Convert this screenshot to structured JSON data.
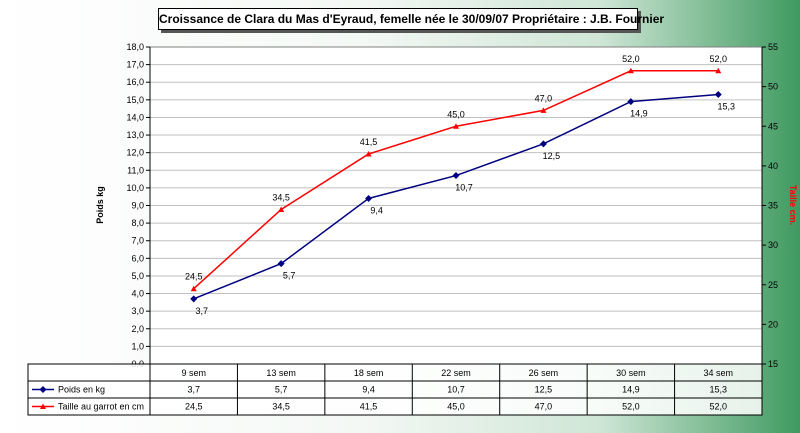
{
  "chart_data": {
    "type": "line",
    "title": "Croissance de Clara du Mas d'Eyraud, femelle née le 30/09/07  Propriétaire :  J.B. Fournier",
    "categories": [
      "9 sem",
      "13 sem",
      "18 sem",
      "22 sem",
      "26 sem",
      "30 sem",
      "34 sem"
    ],
    "y_left": {
      "label": "Poids kg",
      "ylim": [
        0,
        18
      ],
      "ticks": [
        "0,0",
        "1,0",
        "2,0",
        "3,0",
        "4,0",
        "5,0",
        "6,0",
        "7,0",
        "8,0",
        "9,0",
        "10,0",
        "11,0",
        "12,0",
        "13,0",
        "14,0",
        "15,0",
        "16,0",
        "17,0",
        "18,0"
      ]
    },
    "y_right": {
      "label": "Taille cm.",
      "ylim": [
        15,
        55
      ],
      "ticks": [
        "15",
        "20",
        "25",
        "30",
        "35",
        "40",
        "45",
        "50",
        "55"
      ]
    },
    "series": [
      {
        "name": "Poids en kg",
        "axis": "left",
        "color": "#000080",
        "marker": "diamond",
        "values": [
          3.7,
          5.7,
          9.4,
          10.7,
          12.5,
          14.9,
          15.3
        ],
        "labels": [
          "3,7",
          "5,7",
          "9,4",
          "10,7",
          "12,5",
          "14,9",
          "15,3"
        ]
      },
      {
        "name": "Taille au garrot en cm",
        "axis": "right",
        "color": "#ff0000",
        "marker": "triangle",
        "values": [
          24.5,
          34.5,
          41.5,
          45.0,
          47.0,
          52.0,
          52.0
        ],
        "labels": [
          "24,5",
          "34,5",
          "41,5",
          "45,0",
          "47,0",
          "52,0",
          "52,0"
        ]
      }
    ],
    "grid": "horizontal",
    "legend": "data-table-below"
  }
}
